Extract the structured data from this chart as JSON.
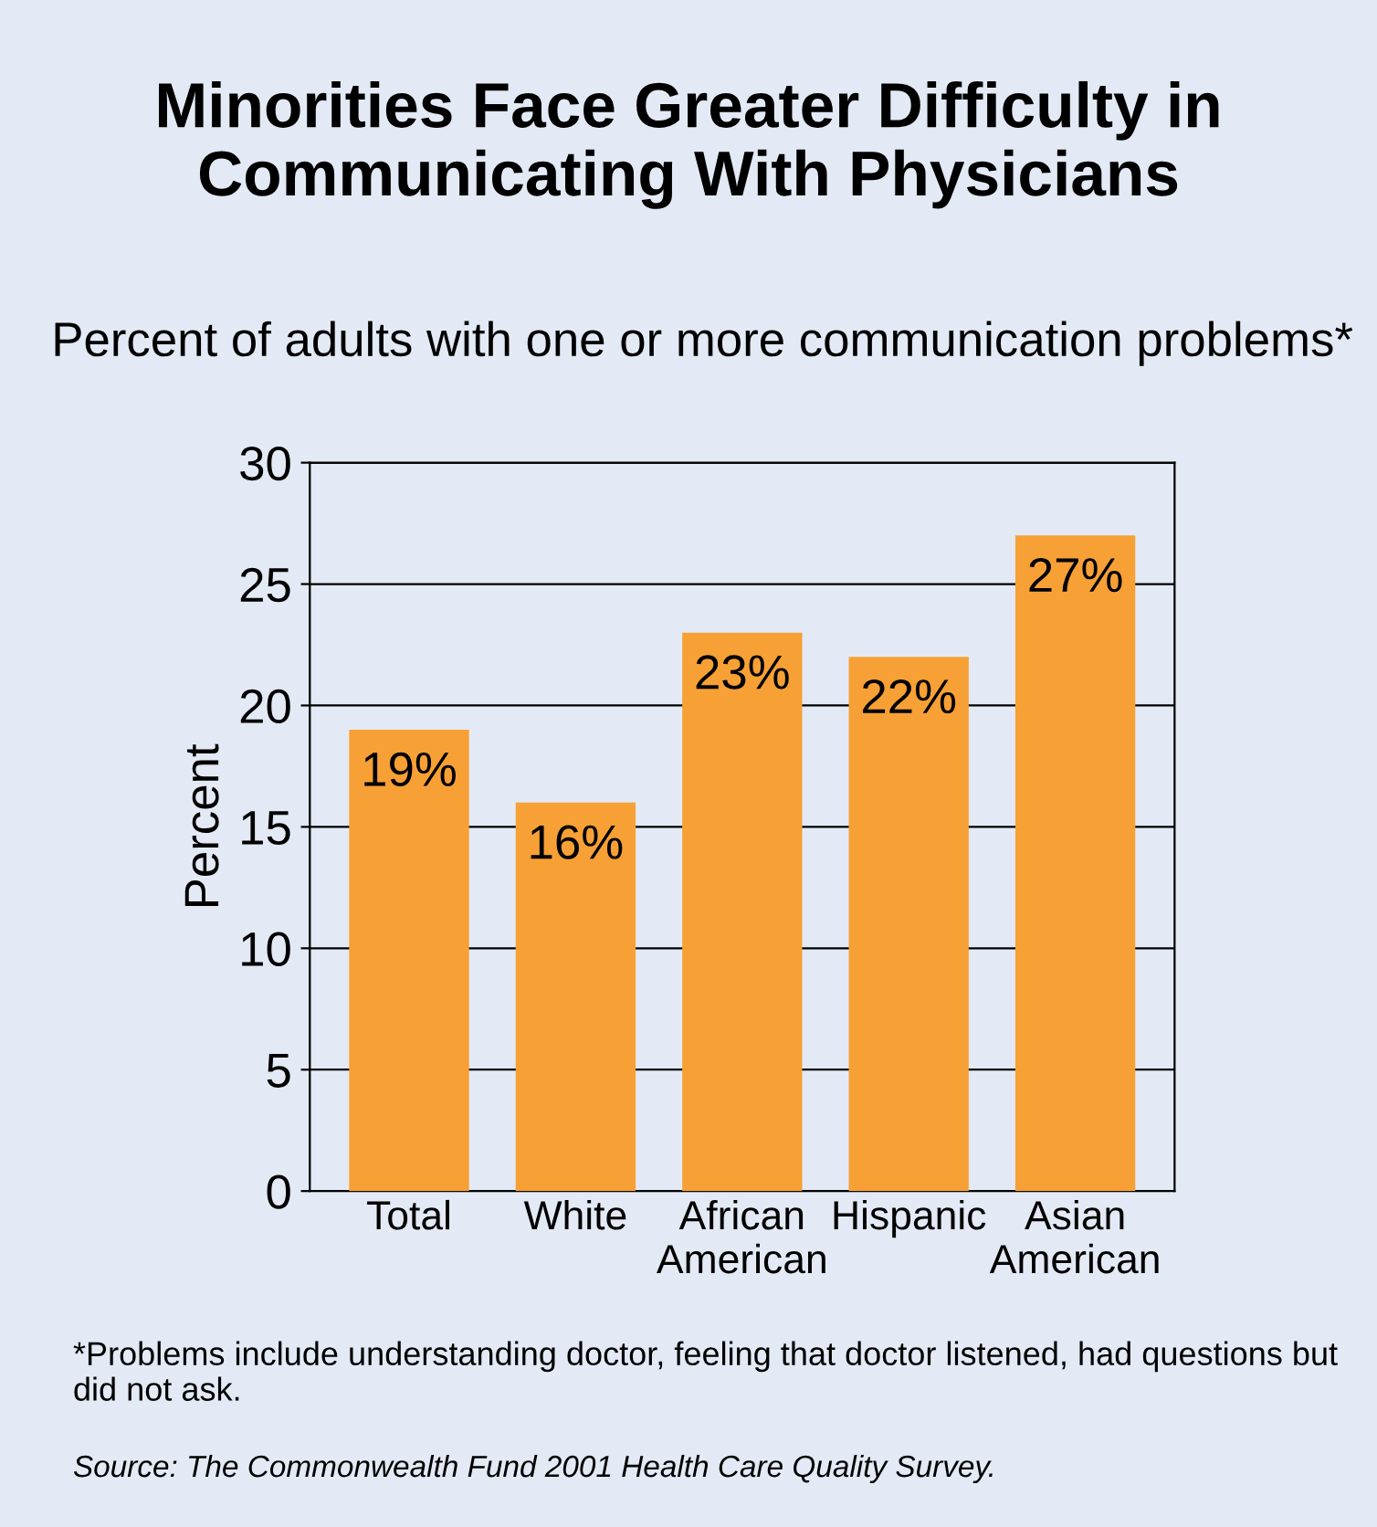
{
  "chart_data": {
    "type": "bar",
    "title": "Minorities Face Greater Difficulty in Communicating With Physicians",
    "subtitle": "Percent of adults with one or more communication problems*",
    "ylabel": "Percent",
    "categories": [
      "Total",
      "White",
      "African American",
      "Hispanic",
      "Asian American"
    ],
    "values": [
      19,
      16,
      23,
      22,
      27
    ],
    "color": "#f7a035",
    "value_labels": [
      "19%",
      "16%",
      "23%",
      "22%",
      "27%"
    ],
    "ylim": [
      0,
      30
    ],
    "yticks": [
      0,
      5,
      10,
      15,
      20,
      25,
      30
    ],
    "grid": "y",
    "annotations": [
      "*Problems include understanding doctor, feeling that doctor listened, had questions but did not ask.",
      "Source: The Commonwealth Fund 2001 Health Care Quality Survey."
    ]
  }
}
